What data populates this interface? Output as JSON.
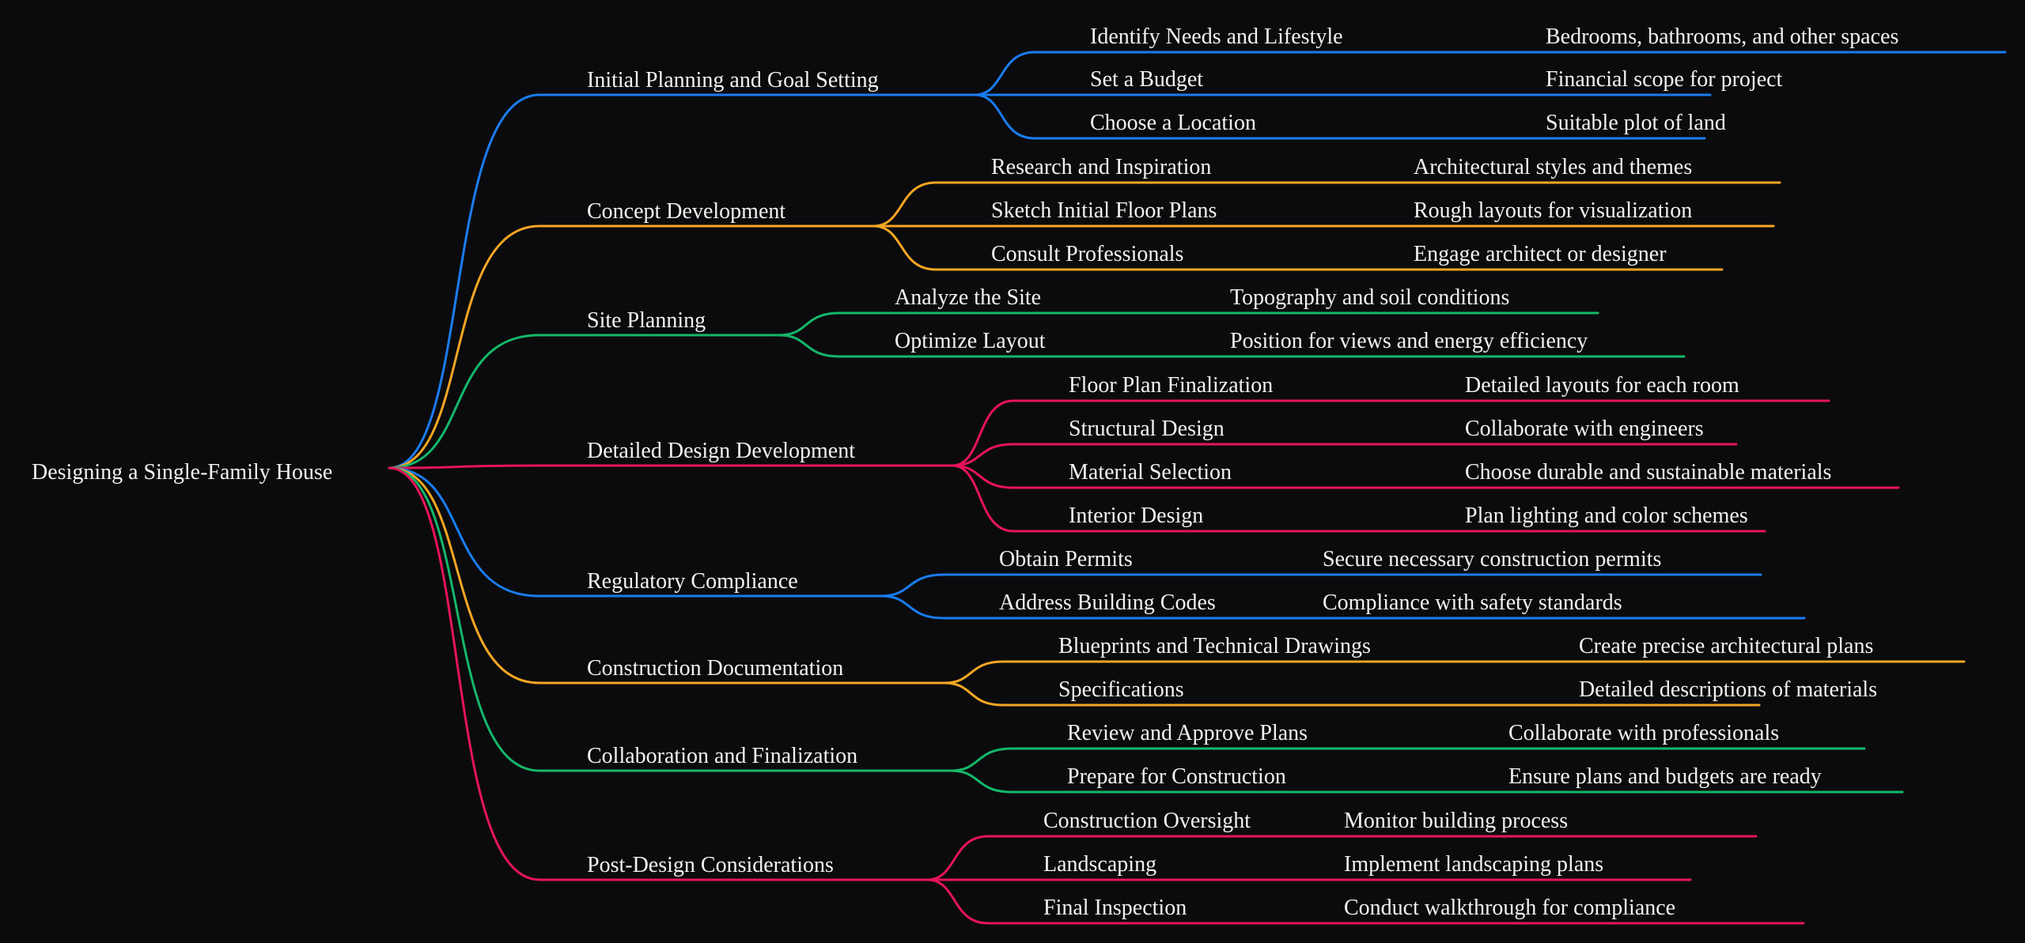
{
  "root": {
    "label": "Designing a Single-Family House"
  },
  "colors": {
    "background": "#0b0b0d",
    "text": "#f2f2f2",
    "branch_palette": [
      "#1a7cf0",
      "#f5a623",
      "#14b86a",
      "#e8145a"
    ]
  },
  "branches": [
    {
      "label": "Initial Planning and Goal Setting",
      "color": "#1a7cf0",
      "children": [
        {
          "label": "Identify Needs and Lifestyle",
          "detail": "Bedrooms, bathrooms, and other spaces"
        },
        {
          "label": "Set a Budget",
          "detail": "Financial scope for project"
        },
        {
          "label": "Choose a Location",
          "detail": "Suitable plot of land"
        }
      ]
    },
    {
      "label": "Concept Development",
      "color": "#f5a623",
      "children": [
        {
          "label": "Research and Inspiration",
          "detail": "Architectural styles and themes"
        },
        {
          "label": "Sketch Initial Floor Plans",
          "detail": "Rough layouts for visualization"
        },
        {
          "label": "Consult Professionals",
          "detail": "Engage architect or designer"
        }
      ]
    },
    {
      "label": "Site Planning",
      "color": "#14b86a",
      "children": [
        {
          "label": "Analyze the Site",
          "detail": "Topography and soil conditions"
        },
        {
          "label": "Optimize Layout",
          "detail": "Position for views and energy efficiency"
        }
      ]
    },
    {
      "label": "Detailed Design Development",
      "color": "#e8145a",
      "children": [
        {
          "label": "Floor Plan Finalization",
          "detail": "Detailed layouts for each room"
        },
        {
          "label": "Structural Design",
          "detail": "Collaborate with engineers"
        },
        {
          "label": "Material Selection",
          "detail": "Choose durable and sustainable materials"
        },
        {
          "label": "Interior Design",
          "detail": "Plan lighting and color schemes"
        }
      ]
    },
    {
      "label": "Regulatory Compliance",
      "color": "#1a7cf0",
      "children": [
        {
          "label": "Obtain Permits",
          "detail": "Secure necessary construction permits"
        },
        {
          "label": "Address Building Codes",
          "detail": "Compliance with safety standards"
        }
      ]
    },
    {
      "label": "Construction Documentation",
      "color": "#f5a623",
      "children": [
        {
          "label": "Blueprints and Technical Drawings",
          "detail": "Create precise architectural plans"
        },
        {
          "label": "Specifications",
          "detail": "Detailed descriptions of materials"
        }
      ]
    },
    {
      "label": "Collaboration and Finalization",
      "color": "#14b86a",
      "children": [
        {
          "label": "Review and Approve Plans",
          "detail": "Collaborate with professionals"
        },
        {
          "label": "Prepare for Construction",
          "detail": "Ensure plans and budgets are ready"
        }
      ]
    },
    {
      "label": "Post-Design Considerations",
      "color": "#e8145a",
      "children": [
        {
          "label": "Construction Oversight",
          "detail": "Monitor building process"
        },
        {
          "label": "Landscaping",
          "detail": "Implement landscaping plans"
        },
        {
          "label": "Final Inspection",
          "detail": "Conduct walkthrough for compliance"
        }
      ]
    }
  ]
}
